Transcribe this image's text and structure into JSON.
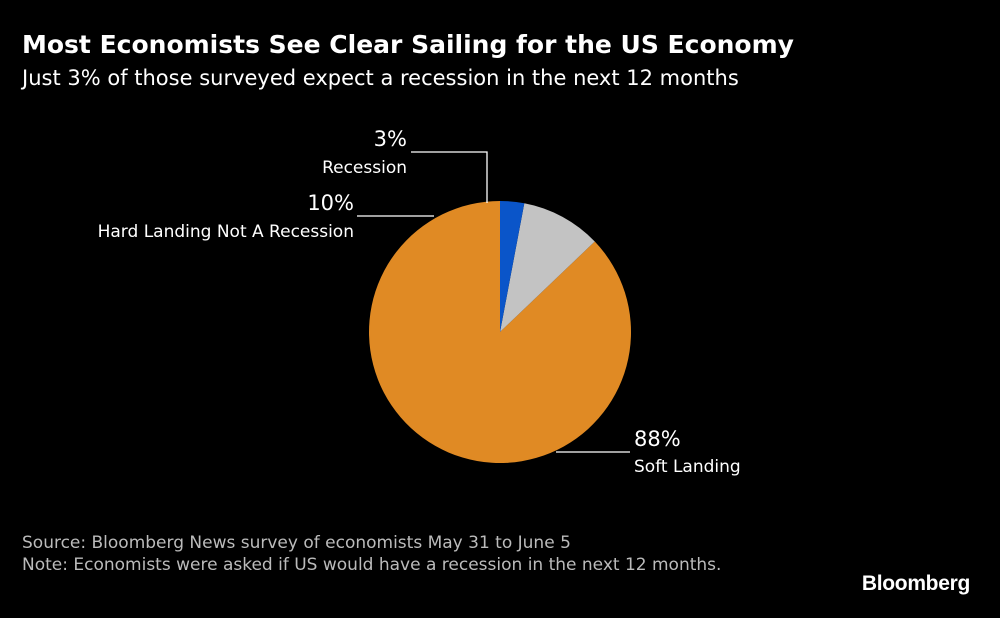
{
  "header": {
    "title": "Most Economists See Clear Sailing for the US Economy",
    "subtitle": "Just 3% of those surveyed expect a recession in the next 12 months"
  },
  "chart_data": {
    "type": "pie",
    "title": "Most Economists See Clear Sailing for the US Economy",
    "subtitle": "Just 3% of those surveyed expect a recession in the next 12 months",
    "slices": [
      {
        "label": "Soft Landing",
        "value": 88,
        "value_label": "88%",
        "color": "#e08a24"
      },
      {
        "label": "Hard Landing Not A Recession",
        "value": 10,
        "value_label": "10%",
        "color": "#c3c3c3"
      },
      {
        "label": "Recession",
        "value": 3,
        "value_label": "3%",
        "color": "#0a55c9"
      }
    ]
  },
  "footer": {
    "source": "Source: Bloomberg News survey of economists May 31 to June 5",
    "note": "Note: Economists were asked if US would have a recession in the next 12 months."
  },
  "brand": {
    "name": "Bloomberg"
  }
}
